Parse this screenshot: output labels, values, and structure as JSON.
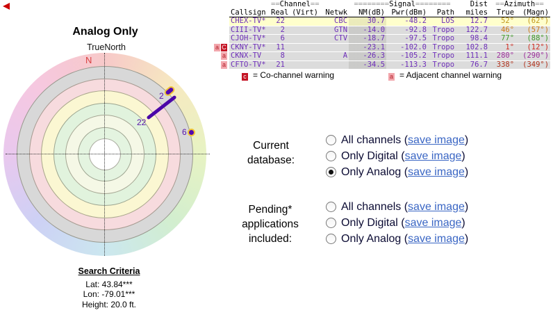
{
  "chart": {
    "title": "Analog Only",
    "orientation_label": "TrueNorth",
    "north_label": "N",
    "hue_colors": [
      "#F7C9C9",
      "#F6E9C0",
      "#E7F3C3",
      "#D2EECF",
      "#CBE7EF",
      "#CDD1F5",
      "#E9C8EE",
      "#F6C8E0",
      "#F7C9C9"
    ],
    "rings": [
      {
        "r": 146,
        "color": "conic"
      },
      {
        "r": 127,
        "color": "#D8D8D8"
      },
      {
        "r": 109,
        "color": "#F7DBDE"
      },
      {
        "r": 92,
        "color": "#FBF7D2"
      },
      {
        "r": 74,
        "color": "#E1F3DD"
      },
      {
        "r": 57,
        "color": "#F5F8E6"
      },
      {
        "r": 39,
        "color": "#E4F4E0"
      },
      {
        "r": 23,
        "color": "#FFFFFF"
      }
    ],
    "marker_labels": {
      "ch2": "2",
      "ch22": "22",
      "ch6": "6"
    }
  },
  "table": {
    "group_headers": {
      "channel": {
        "pre": "==",
        "label": "Channel",
        "post": "=="
      },
      "signal": {
        "pre": "========",
        "label": "Signal",
        "post": "========"
      },
      "dist": "Dist",
      "azimuth": {
        "pre": "==",
        "label": "Azimuth",
        "post": "=="
      }
    },
    "columns": [
      "Callsign",
      "Real",
      "(Virt)",
      "Netwk",
      "NM(dB)",
      "Pwr(dBm)",
      "Path",
      "miles",
      "True",
      "(Magn)"
    ],
    "rows": [
      {
        "badges": [],
        "callsign": "CHEX-TV*",
        "real": "22",
        "virt": "",
        "netwk": "CBC",
        "nm": "30.7",
        "pwr": "-48.2",
        "path": "LOS",
        "miles": "12.7",
        "az_true": "52°",
        "az_magn": "(62°)",
        "az_color": "#C0951A",
        "bg": "#FFFFCC"
      },
      {
        "badges": [],
        "callsign": "CIII-TV*",
        "real": "2",
        "virt": "",
        "netwk": "GTN",
        "nm": "-14.0",
        "pwr": "-92.8",
        "path": "Tropo",
        "miles": "122.7",
        "az_true": "46°",
        "az_magn": "(57°)",
        "az_color": "#CC7A14",
        "bg": "#DCDCDC"
      },
      {
        "badges": [],
        "callsign": "CJOH-TV*",
        "real": "6",
        "virt": "",
        "netwk": "CTV",
        "nm": "-18.7",
        "pwr": "-97.5",
        "path": "Tropo",
        "miles": "98.4",
        "az_true": "77°",
        "az_magn": "(88°)",
        "az_color": "#3D9A25",
        "bg": "#DCDCDC"
      },
      {
        "badges": [
          "a",
          "C"
        ],
        "callsign": "CKNY-TV*",
        "real": "11",
        "virt": "",
        "netwk": "",
        "nm": "-23.1",
        "pwr": "-102.0",
        "path": "Tropo",
        "miles": "102.8",
        "az_true": "1°",
        "az_magn": "(12°)",
        "az_color": "#D02B20",
        "bg": "#DCDCDC"
      },
      {
        "badges": [
          "a"
        ],
        "callsign": "CKNX-TV",
        "real": "8",
        "virt": "",
        "netwk": "A",
        "nm": "-26.3",
        "pwr": "-105.2",
        "path": "Tropo",
        "miles": "111.1",
        "az_true": "280°",
        "az_magn": "(290°)",
        "az_color": "#9B2D9B",
        "bg": "#DCDCDC"
      },
      {
        "badges": [
          "a"
        ],
        "callsign": "CFTO-TV*",
        "real": "21",
        "virt": "",
        "netwk": "",
        "nm": "-34.5",
        "pwr": "-113.3",
        "path": "Tropo",
        "miles": "76.7",
        "az_true": "338°",
        "az_magn": "(349°)",
        "az_color": "#B0341F",
        "bg": "#DCDCDC"
      }
    ],
    "value_color": "#6D2EB8"
  },
  "legend": {
    "co": {
      "badge": "c",
      "text": "= Co-channel warning"
    },
    "adj": {
      "badge": "a",
      "text": "= Adjacent channel warning"
    }
  },
  "controls": {
    "groups": [
      {
        "key": "current-database",
        "label_lines": [
          "Current",
          "database:"
        ],
        "selected": 2
      },
      {
        "key": "pending-applications",
        "label_lines": [
          "Pending*",
          "applications",
          "included:"
        ],
        "selected": -1
      }
    ],
    "options": [
      "All channels",
      "Only Digital",
      "Only Analog"
    ],
    "link_text": "save image",
    "paren_open": "(",
    "paren_close": ")"
  },
  "search_criteria": {
    "title": "Search Criteria",
    "lines": [
      "Lat: 43.84***",
      "Lon: -79.01***",
      "Height: 20.0 ft."
    ]
  }
}
